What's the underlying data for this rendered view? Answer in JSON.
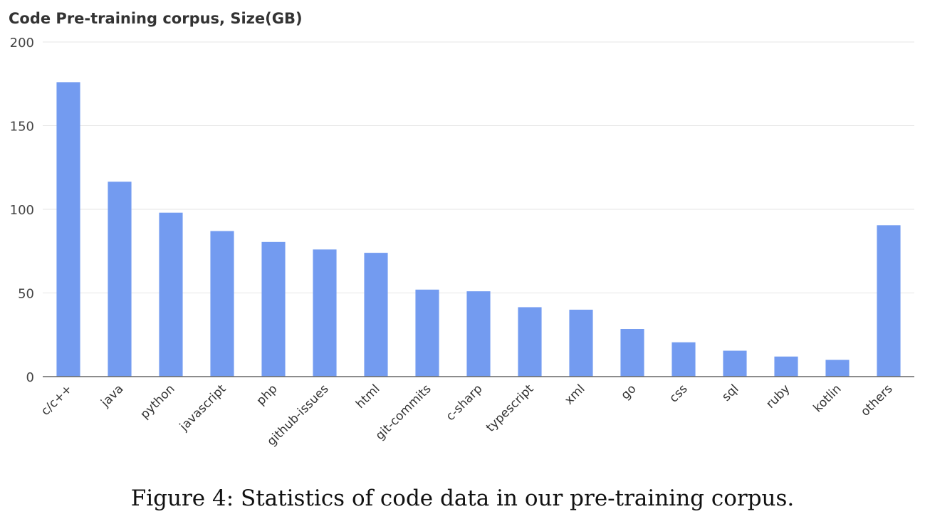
{
  "chart_data": {
    "type": "bar",
    "title": "Code Pre-training corpus, Size(GB)",
    "xlabel": "",
    "ylabel": "",
    "ylim": [
      0,
      200
    ],
    "yticks": [
      0,
      50,
      100,
      150,
      200
    ],
    "grid": true,
    "legend": "none",
    "bar_color": "#739bf0",
    "categories": [
      "c/c++",
      "java",
      "python",
      "javascript",
      "php",
      "github-issues",
      "html",
      "git-commits",
      "c-sharp",
      "typescript",
      "xml",
      "go",
      "css",
      "sql",
      "ruby",
      "kotlin",
      "others"
    ],
    "values": [
      176,
      116.5,
      98,
      87,
      80.5,
      76,
      74,
      52,
      51,
      41.5,
      40,
      28.5,
      20.5,
      15.5,
      12,
      10,
      90.5
    ]
  },
  "caption": "Figure 4: Statistics of code data in our pre-training corpus."
}
